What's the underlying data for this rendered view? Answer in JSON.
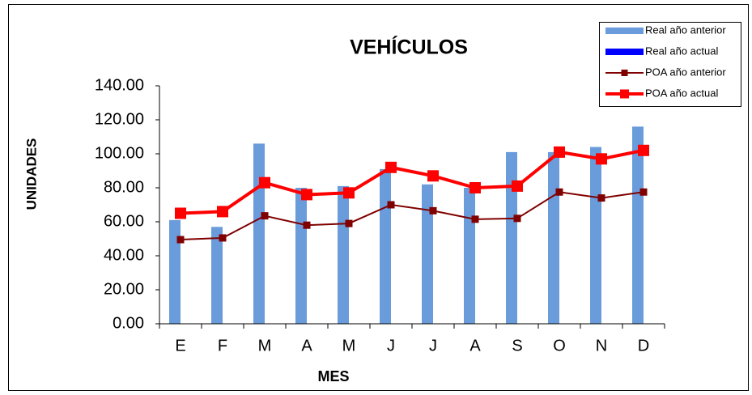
{
  "chart_data": {
    "type": "bar_line",
    "title": "VEHÍCULOS",
    "x_label": "MES",
    "y_label": "UNIDADES",
    "categories": [
      "E",
      "F",
      "M",
      "A",
      "M",
      "J",
      "J",
      "A",
      "S",
      "O",
      "N",
      "D"
    ],
    "series": [
      {
        "name": "Real año anterior",
        "type": "bar",
        "color": "#6a9cdc",
        "values": [
          61,
          57,
          106,
          80,
          81,
          91,
          82,
          80,
          101,
          101,
          104,
          116
        ]
      },
      {
        "name": "Real año actual",
        "type": "bar",
        "color": "#0000ff",
        "values": [
          null,
          null,
          null,
          null,
          null,
          null,
          null,
          null,
          null,
          null,
          null,
          null
        ]
      },
      {
        "name": "POA año anterior",
        "type": "line",
        "color": "#800000",
        "values": [
          49.5,
          50.5,
          63.5,
          58,
          59,
          70,
          66.5,
          61.5,
          62,
          77.5,
          74,
          77.5
        ]
      },
      {
        "name": "POA año actual",
        "type": "line",
        "color": "#ff0000",
        "values": [
          65,
          66,
          83,
          76,
          77,
          92,
          87,
          80,
          81,
          101,
          97,
          102
        ]
      }
    ],
    "ylim": [
      0,
      140
    ],
    "yticks": [
      {
        "value": 0,
        "label": "0.00"
      },
      {
        "value": 20,
        "label": "20.00"
      },
      {
        "value": 40,
        "label": "40.00"
      },
      {
        "value": 60,
        "label": "60.00"
      },
      {
        "value": 80,
        "label": "80.00"
      },
      {
        "value": 100,
        "label": "100.00"
      },
      {
        "value": 120,
        "label": "120.00"
      },
      {
        "value": 140,
        "label": "140.00"
      }
    ],
    "legend": "top-right"
  }
}
